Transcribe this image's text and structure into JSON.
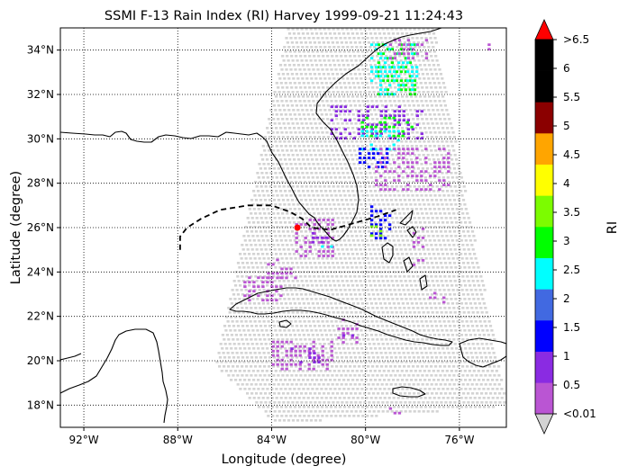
{
  "figure": {
    "title": "SSMI F-13 Rain Index (RI) Harvey 1999-09-21 11:24:43",
    "xlabel": "Longitude (degree)",
    "ylabel": "Latitude (degree)",
    "colorbar_label": "RI"
  },
  "map_axes": {
    "lon_range": [
      -93.0,
      -74.0
    ],
    "lat_range": [
      17.0,
      35.0
    ],
    "lon_ticks": [
      {
        "value": -92,
        "label": "92°W"
      },
      {
        "value": -88,
        "label": "88°W"
      },
      {
        "value": -84,
        "label": "84°W"
      },
      {
        "value": -80,
        "label": "80°W"
      },
      {
        "value": -76,
        "label": "76°W"
      }
    ],
    "lat_ticks": [
      {
        "value": 18,
        "label": "18°N"
      },
      {
        "value": 20,
        "label": "20°N"
      },
      {
        "value": 22,
        "label": "22°N"
      },
      {
        "value": 24,
        "label": "24°N"
      },
      {
        "value": 26,
        "label": "26°N"
      },
      {
        "value": 28,
        "label": "28°N"
      },
      {
        "value": 30,
        "label": "30°N"
      },
      {
        "value": 32,
        "label": "32°N"
      },
      {
        "value": 34,
        "label": "34°N"
      }
    ],
    "gridlines": "dotted",
    "coastline_color": "#000000",
    "track_color": "#000000",
    "storm_marker_color": "#ff0000"
  },
  "colorbar": {
    "levels": [
      "<0.01",
      "0.5",
      "1",
      "1.5",
      "2",
      "2.5",
      "3",
      "3.5",
      "4",
      "4.5",
      "5",
      "5.5",
      "6",
      ">6.5"
    ],
    "under_color": "#d3d3d3",
    "over_color": "#ff0000",
    "colors": [
      "#ba55d3",
      "#8a2be2",
      "#0000ff",
      "#4169e1",
      "#00ffff",
      "#00ff00",
      "#7cfc00",
      "#ffff00",
      "#ffa500",
      "#8b0000",
      "#000000",
      "#000000"
    ]
  },
  "storm_track": [
    [
      -87.9,
      25.0
    ],
    [
      -87.9,
      25.6
    ],
    [
      -87.6,
      26.0
    ],
    [
      -87.0,
      26.4
    ],
    [
      -86.2,
      26.8
    ],
    [
      -85.0,
      27.0
    ],
    [
      -84.0,
      27.0
    ],
    [
      -83.2,
      26.7
    ],
    [
      -82.7,
      26.4
    ],
    [
      -82.3,
      26.0
    ],
    [
      -81.5,
      25.9
    ],
    [
      -80.5,
      26.2
    ],
    [
      -79.5,
      26.5
    ],
    [
      -78.7,
      26.8
    ]
  ],
  "storm_position": [
    -82.9,
    26.0
  ],
  "rain_clusters": [
    {
      "lon": [
        -79.5,
        -77.8
      ],
      "lat": [
        32.0,
        34.3
      ],
      "level": 5
    },
    {
      "lon": [
        -79.8,
        -77.8
      ],
      "lat": [
        32.0,
        34.3
      ],
      "level": 4
    },
    {
      "lon": [
        -79.0,
        -77.4
      ],
      "lat": [
        33.5,
        34.5
      ],
      "level": 0
    },
    {
      "lon": [
        -81.5,
        -77.5
      ],
      "lat": [
        30.0,
        31.5
      ],
      "level": 1
    },
    {
      "lon": [
        -80.2,
        -78.0
      ],
      "lat": [
        30.1,
        31.0
      ],
      "level": 5
    },
    {
      "lon": [
        -80.2,
        -78.5
      ],
      "lat": [
        29.5,
        30.4
      ],
      "level": 4
    },
    {
      "lon": [
        -80.3,
        -79.0
      ],
      "lat": [
        28.6,
        29.6
      ],
      "level": 2
    },
    {
      "lon": [
        -79.6,
        -76.5
      ],
      "lat": [
        27.7,
        29.6
      ],
      "level": 0
    },
    {
      "lon": [
        -79.8,
        -78.9
      ],
      "lat": [
        25.5,
        27.0
      ],
      "level": 2
    },
    {
      "lon": [
        -79.8,
        -79.3
      ],
      "lat": [
        25.6,
        26.1
      ],
      "level": 6
    },
    {
      "lon": [
        -83.0,
        -81.4
      ],
      "lat": [
        24.6,
        26.4
      ],
      "level": 0
    },
    {
      "lon": [
        -82.3,
        -81.4
      ],
      "lat": [
        25.2,
        25.8
      ],
      "level": 1
    },
    {
      "lon": [
        -81.9,
        -81.4
      ],
      "lat": [
        24.9,
        25.2
      ],
      "level": 4
    },
    {
      "lon": [
        -85.2,
        -83.6
      ],
      "lat": [
        22.6,
        23.8
      ],
      "level": 0
    },
    {
      "lon": [
        -84.2,
        -83.0
      ],
      "lat": [
        23.6,
        24.6
      ],
      "level": 0
    },
    {
      "lon": [
        -84.0,
        -81.5
      ],
      "lat": [
        19.6,
        20.9
      ],
      "level": 0
    },
    {
      "lon": [
        -83.2,
        -82.0
      ],
      "lat": [
        19.8,
        20.6
      ],
      "level": 1
    },
    {
      "lon": [
        -81.2,
        -80.3
      ],
      "lat": [
        20.8,
        21.9
      ],
      "level": 0
    },
    {
      "lon": [
        -81.0,
        -80.5
      ],
      "lat": [
        21.0,
        21.4
      ],
      "level": 1
    },
    {
      "lon": [
        -77.3,
        -76.7
      ],
      "lat": [
        22.6,
        23.1
      ],
      "level": 0
    },
    {
      "lon": [
        -78.0,
        -77.5
      ],
      "lat": [
        24.3,
        26.0
      ],
      "level": 0
    },
    {
      "lon": [
        -74.8,
        -74.5
      ],
      "lat": [
        34.0,
        34.3
      ],
      "level": 0
    },
    {
      "lon": [
        -79.0,
        -78.5
      ],
      "lat": [
        17.5,
        17.9
      ],
      "level": 0
    }
  ]
}
